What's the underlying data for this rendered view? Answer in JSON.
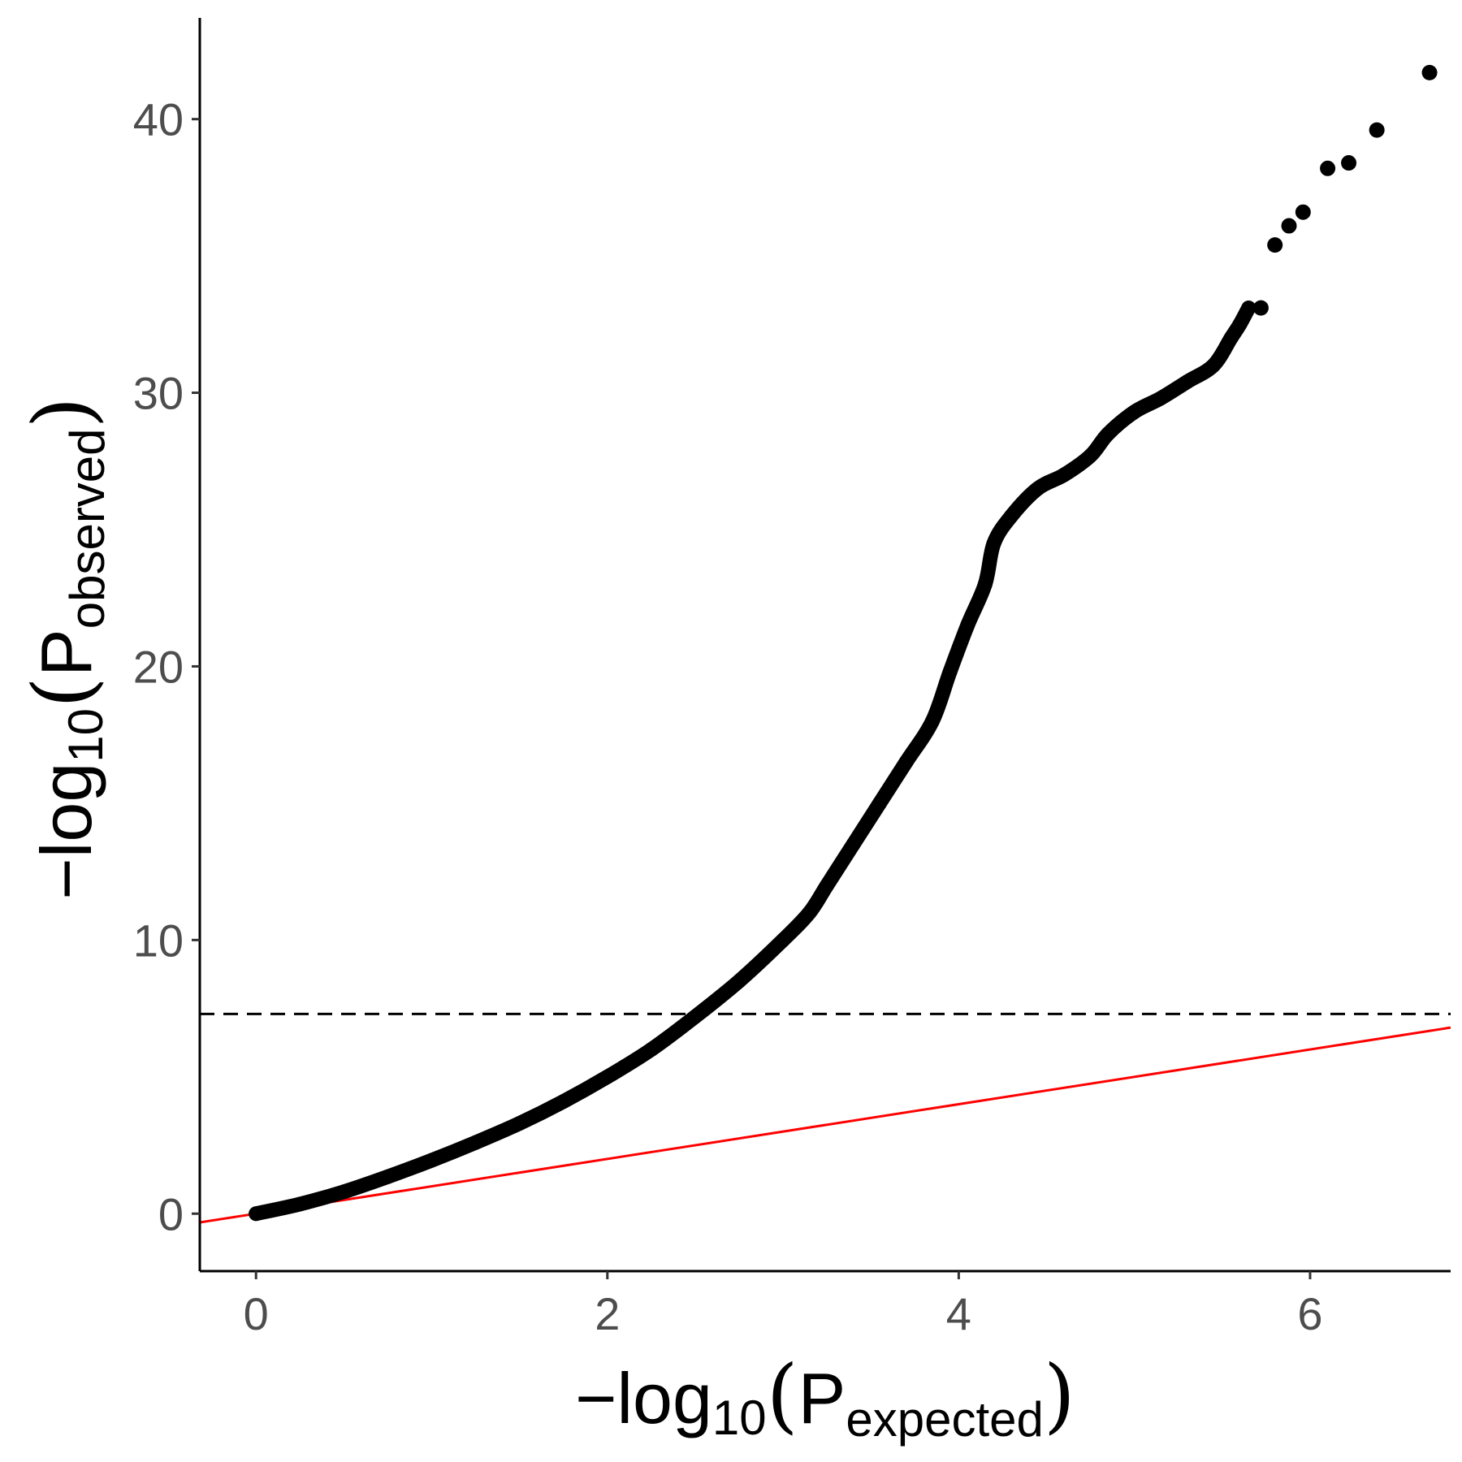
{
  "chart_data": {
    "type": "scatter",
    "title": "",
    "xlabel": {
      "prefix": "−log",
      "base": "10",
      "open": "(",
      "P": "P",
      "sub": "expected",
      "close": ")"
    },
    "ylabel": {
      "prefix": "−log",
      "base": "10",
      "open": "(",
      "P": "P",
      "sub": "observed",
      "close": ")"
    },
    "xlim": [
      -0.32,
      6.8
    ],
    "ylim": [
      -2.1,
      43.7
    ],
    "x_ticks": [
      0,
      2,
      4,
      6
    ],
    "x_tick_labels": [
      "0",
      "2",
      "4",
      "6"
    ],
    "y_ticks": [
      0,
      10,
      20,
      30,
      40
    ],
    "y_tick_labels": [
      "0",
      "10",
      "20",
      "30",
      "40"
    ],
    "grid": false,
    "legend": "none",
    "colors": {
      "points": "#000000",
      "diagonal": "#ff0000",
      "threshold": "#000000",
      "tick_label": "#4d4d4d"
    },
    "reference_line": {
      "type": "y=x",
      "color": "#ff0000"
    },
    "threshold_line": {
      "y": 7.3,
      "style": "dashed",
      "color": "#000000"
    },
    "curve_points": [
      [
        0,
        0
      ],
      [
        0.25,
        0.35
      ],
      [
        0.5,
        0.8
      ],
      [
        0.75,
        1.35
      ],
      [
        1.0,
        1.95
      ],
      [
        1.25,
        2.6
      ],
      [
        1.5,
        3.3
      ],
      [
        1.75,
        4.1
      ],
      [
        2.0,
        5.0
      ],
      [
        2.25,
        6.0
      ],
      [
        2.5,
        7.2
      ],
      [
        2.75,
        8.5
      ],
      [
        3.0,
        10.0
      ],
      [
        3.15,
        11.0
      ],
      [
        3.25,
        12.0
      ],
      [
        3.4,
        13.5
      ],
      [
        3.55,
        15.0
      ],
      [
        3.7,
        16.5
      ],
      [
        3.85,
        18.0
      ],
      [
        3.95,
        19.8
      ],
      [
        4.05,
        21.5
      ],
      [
        4.15,
        23.0
      ],
      [
        4.2,
        24.5
      ],
      [
        4.3,
        25.5
      ],
      [
        4.45,
        26.5
      ],
      [
        4.6,
        27.0
      ],
      [
        4.75,
        27.7
      ],
      [
        4.85,
        28.5
      ],
      [
        5.0,
        29.3
      ],
      [
        5.15,
        29.8
      ],
      [
        5.3,
        30.4
      ],
      [
        5.45,
        31.0
      ],
      [
        5.55,
        32.0
      ],
      [
        5.6,
        32.5
      ],
      [
        5.65,
        33.1
      ]
    ],
    "outlier_points": [
      [
        5.72,
        33.1
      ],
      [
        5.8,
        35.4
      ],
      [
        5.88,
        36.1
      ],
      [
        5.96,
        36.6
      ],
      [
        6.1,
        38.2
      ],
      [
        6.22,
        38.4
      ],
      [
        6.38,
        39.6
      ],
      [
        6.68,
        41.7
      ]
    ]
  }
}
